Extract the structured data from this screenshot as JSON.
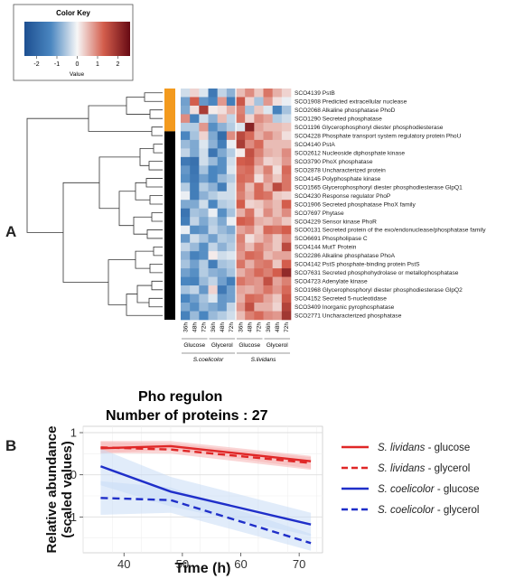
{
  "panel_a": {
    "letter": "A",
    "color_key": {
      "title": "Color Key",
      "axis_label": "Value",
      "ticks": [
        "-2",
        "-1",
        "0",
        "1",
        "2"
      ],
      "range": [
        -2.6,
        2.6
      ],
      "colors": [
        "#1d4f91",
        "#4a86c0",
        "#f7f7f7",
        "#d35d4c",
        "#670a13"
      ]
    },
    "sidebar_colors": {
      "group1": "#f39a1e",
      "group2": "#000000"
    },
    "sidebar_group1_count": 5,
    "proteins": [
      "SCO4139 PstB",
      "SCO1908 Predicted extracellular nuclease",
      "SCO2068 Alkaline phosphatase PhoD",
      "SCO1290 Secreted phosphatase",
      "SCO1196 Glycerophosphoryl diester phosphodiesterase",
      "SCO4228 Phosphate transport system regulatory protein PhoU",
      "SCO4140 PstA",
      "SCO2612 Nucleoside diphosphate kinase",
      "SCO3790 PhoX phosphatase",
      "SCO2878 Uncharacterized protein",
      "SCO4145 Polyphosphate kinase",
      "SCO1565 Glycerophosphoryl diester phosphodiesterase GlpQ1",
      "SCO4230 Response regulator PhoP",
      "SCO1906 Secreted phosphatase PhoX family",
      "SCO7697 Phytase",
      "SCO4229 Sensor kinase PhoR",
      "SCO0131 Secreted protein of the exo/endonuclease/phosphatase family",
      "SCO6691 Phospholipase C",
      "SCO4144 MutT Protein",
      "SCO2286 Alkaline phosphatase PhoA",
      "SCO4142 PstS phosphate-binding protein PstS",
      "SCO7631 Secreted phosphohydrolase or metallophosphatase",
      "SCO4723 Adenylate kinase",
      "SCO1968 Glycerophosphoryl diester phosphodiesterase GlpQ2",
      "SCO4152 Secreted 5-nucleotidase",
      "SCO3409 Inorganic pyrophosphatase",
      "SCO2771 Uncharacterized phosphatase"
    ],
    "column_labels": [
      "36h",
      "48h",
      "72h",
      "36h",
      "48h",
      "72h",
      "36h",
      "48h",
      "72h",
      "36h",
      "48h",
      "72h"
    ],
    "conditions": [
      "Glucose",
      "Glycerol",
      "Glucose",
      "Glycerol"
    ],
    "species": [
      "S.coelicolor",
      "S.lividans"
    ],
    "matrix": [
      [
        -0.3,
        0.3,
        -0.2,
        -1.6,
        -0.4,
        -0.8,
        0.5,
        0.9,
        0.4,
        1.1,
        0.6,
        0.3
      ],
      [
        -1.0,
        1.3,
        -1.1,
        -1.3,
        0.8,
        -1.5,
        1.4,
        0.3,
        -0.6,
        0.8,
        0.2,
        -0.1
      ],
      [
        -0.9,
        0.2,
        1.8,
        0.1,
        0.2,
        0.6,
        1.0,
        -0.6,
        0.4,
        -0.2,
        -1.4,
        -0.6
      ],
      [
        0.9,
        -1.4,
        -0.3,
        -0.8,
        0.5,
        -0.4,
        1.1,
        0.3,
        0.9,
        0.7,
        -0.5,
        -0.3
      ],
      [
        -0.5,
        -0.5,
        0.8,
        -1.2,
        -0.8,
        -0.5,
        -0.2,
        2.2,
        0.7,
        0.5,
        0.5,
        0.4
      ],
      [
        -1.3,
        -0.6,
        0.3,
        -0.9,
        -1.9,
        0.9,
        1.6,
        1.2,
        0.6,
        0.9,
        0.6,
        0.2
      ],
      [
        -0.7,
        -0.9,
        -0.2,
        -0.8,
        -1.5,
        -0.1,
        1.8,
        0.9,
        1.2,
        0.5,
        0.5,
        0.5
      ],
      [
        -0.4,
        -0.9,
        -0.3,
        -1.7,
        -0.9,
        -0.5,
        0.1,
        1.5,
        1.0,
        0.6,
        0.5,
        0.9
      ],
      [
        -1.6,
        -1.8,
        -0.3,
        -0.7,
        -1.2,
        -0.3,
        1.3,
        1.4,
        0.8,
        0.3,
        0.4,
        0.8
      ],
      [
        -1.1,
        -1.7,
        -0.6,
        -1.3,
        -1.2,
        -0.2,
        1.1,
        1.2,
        0.5,
        1.0,
        0.2,
        1.2
      ],
      [
        -1.2,
        -1.6,
        -1.0,
        -1.3,
        -0.7,
        -0.5,
        1.2,
        1.1,
        0.2,
        0.8,
        0.4,
        1.1
      ],
      [
        -0.5,
        -1.5,
        -0.5,
        -0.8,
        -1.5,
        -0.3,
        1.1,
        0.5,
        1.2,
        0.6,
        1.6,
        1.1
      ],
      [
        -0.1,
        -1.5,
        -0.8,
        -0.5,
        -0.3,
        -0.3,
        1.0,
        0.6,
        1.2,
        1.1,
        0.4,
        0.3
      ],
      [
        -0.9,
        -0.9,
        -0.3,
        -1.3,
        -0.5,
        -0.4,
        1.3,
        0.3,
        0.4,
        0.7,
        0.5,
        1.3
      ],
      [
        -1.7,
        -0.6,
        -0.7,
        -0.1,
        -1.2,
        -0.6,
        0.6,
        1.1,
        0.3,
        0.9,
        0.5,
        0.9
      ],
      [
        -1.5,
        -0.4,
        -0.9,
        -0.5,
        -0.9,
        -0.1,
        1.3,
        1.2,
        0.6,
        0.5,
        0.7,
        0.4
      ],
      [
        -0.1,
        -1.2,
        -1.1,
        -0.4,
        -0.7,
        -0.9,
        0.7,
        0.9,
        0.4,
        1.2,
        1.1,
        1.3
      ],
      [
        -1.1,
        -0.3,
        -0.6,
        -1.0,
        -0.5,
        -0.6,
        1.0,
        0.2,
        0.5,
        0.8,
        0.4,
        0.9
      ],
      [
        -0.4,
        -0.7,
        -1.2,
        -0.4,
        -0.8,
        -0.5,
        0.9,
        0.5,
        1.0,
        0.7,
        0.4,
        1.6
      ],
      [
        -0.8,
        -1.4,
        -1.2,
        0.1,
        -0.3,
        -0.2,
        0.8,
        1.2,
        1.1,
        0.5,
        0.7,
        0.7
      ],
      [
        -0.6,
        -1.0,
        -0.5,
        -1.5,
        -0.6,
        -0.5,
        1.1,
        0.6,
        1.0,
        1.1,
        0.4,
        1.3
      ],
      [
        -1.0,
        -1.2,
        -0.5,
        -0.8,
        -0.9,
        -0.6,
        0.6,
        0.9,
        1.2,
        1.0,
        1.3,
        2.1
      ],
      [
        -1.3,
        -1.4,
        -0.7,
        -0.4,
        -1.0,
        -1.5,
        1.1,
        0.9,
        0.8,
        1.5,
        0.7,
        1.0
      ],
      [
        -0.6,
        -0.4,
        -1.1,
        0.3,
        -1.6,
        -1.0,
        0.7,
        0.6,
        0.8,
        1.1,
        0.8,
        1.2
      ],
      [
        -1.3,
        -1.0,
        -0.6,
        -0.2,
        -1.1,
        -1.0,
        0.6,
        1.2,
        1.1,
        0.7,
        0.4,
        1.4
      ],
      [
        -0.9,
        -1.2,
        -0.7,
        -0.9,
        -1.1,
        -0.4,
        0.8,
        1.5,
        0.6,
        0.6,
        0.3,
        1.7
      ],
      [
        -1.4,
        -0.7,
        -1.3,
        -0.7,
        -0.5,
        -0.3,
        0.5,
        1.0,
        1.2,
        0.9,
        0.8,
        1.9
      ]
    ]
  },
  "panel_b": {
    "letter": "B",
    "chart_data": {
      "type": "line",
      "title": "Pho regulon",
      "subtitle": "Number of proteins : 27",
      "xlabel": "Time (h)",
      "ylabel_lines": [
        "Relative abundance",
        "(scaled values)"
      ],
      "xlim": [
        33,
        74
      ],
      "ylim": [
        -1.85,
        1.15
      ],
      "xticks": [
        40,
        50,
        60,
        70
      ],
      "yticks": [
        -1,
        0,
        1
      ],
      "grid": true,
      "legend_position": "right",
      "series": [
        {
          "species": "S. lividans",
          "medium": "glucose",
          "color": "#e02727",
          "dashed": false,
          "x": [
            36,
            48,
            72
          ],
          "y": [
            0.63,
            0.68,
            0.32
          ],
          "band_low": [
            0.5,
            0.6,
            0.15
          ],
          "band_high": [
            0.8,
            0.8,
            0.45
          ]
        },
        {
          "species": "S. lividans",
          "medium": "glycerol",
          "color": "#e02727",
          "dashed": true,
          "x": [
            36,
            48,
            72
          ],
          "y": [
            0.65,
            0.6,
            0.28
          ],
          "band_low": [
            0.52,
            0.5,
            0.12
          ],
          "band_high": [
            0.78,
            0.75,
            0.42
          ]
        },
        {
          "species": "S. coelicolor",
          "medium": "glucose",
          "color": "#1f2fc9",
          "dashed": false,
          "x": [
            36,
            48,
            72
          ],
          "y": [
            0.2,
            -0.4,
            -1.18
          ],
          "band_low": [
            -0.25,
            -0.75,
            -1.45
          ],
          "band_high": [
            0.62,
            -0.05,
            -0.9
          ]
        },
        {
          "species": "S. coelicolor",
          "medium": "glycerol",
          "color": "#1f2fc9",
          "dashed": true,
          "x": [
            36,
            48,
            72
          ],
          "y": [
            -0.55,
            -0.6,
            -1.62
          ],
          "band_low": [
            -0.95,
            -0.9,
            -1.8
          ],
          "band_high": [
            -0.15,
            -0.3,
            -1.4
          ]
        }
      ],
      "band_colors": {
        "red": "#f6b5b5",
        "blue": "#c9dcf5"
      }
    }
  }
}
